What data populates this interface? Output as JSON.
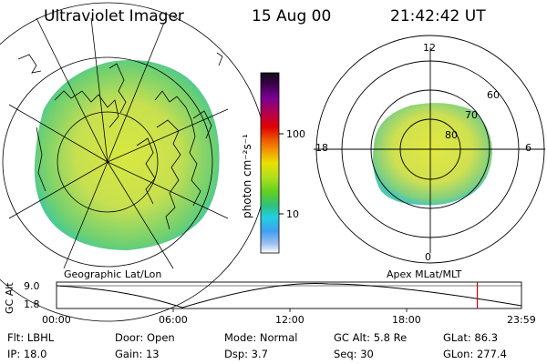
{
  "header": {
    "title": "Ultraviolet Imager",
    "date": "15 Aug 00",
    "time": "21:42:42 UT"
  },
  "colorbar": {
    "unit_label": "photon cm⁻²s⁻¹",
    "ticks": [
      "100",
      "10"
    ],
    "colors": [
      "#101010",
      "#3a004a",
      "#7a0090",
      "#c00040",
      "#e00000",
      "#f06000",
      "#f0a000",
      "#e8e000",
      "#b0e020",
      "#60d020",
      "#30c080",
      "#20d0e0",
      "#40a0f0",
      "#a0c0f0",
      "#ffffff"
    ]
  },
  "left_map": {
    "label": "Geographic Lat/Lon"
  },
  "right_map": {
    "label": "Apex MLat/MLT",
    "mlt_labels": {
      "top": "12",
      "left": "18",
      "right": "6",
      "bottom": "0"
    },
    "lat_labels": [
      "60",
      "70",
      "80"
    ]
  },
  "altitude_plot": {
    "ylabel": "GC Alt",
    "yticks": [
      "9.0",
      "1.8"
    ],
    "xticks": [
      "00:00",
      "06:00",
      "12:00",
      "18:00",
      "23:59"
    ],
    "marker_color": "#d00000",
    "marker_time_frac": 0.905
  },
  "status": {
    "row1": {
      "flt": "Flt: LBHL",
      "door": "Door: Open",
      "mode": "Mode: Normal",
      "gc_alt": "GC Alt: 5.8 Re",
      "glat": "GLat:  86.3"
    },
    "row2": {
      "ip": "IP: 18.0",
      "gain": "Gain: 13",
      "dsp": "Dsp:    3.7",
      "seq": "Seq: 30",
      "glon": "GLon: 277.4"
    }
  }
}
